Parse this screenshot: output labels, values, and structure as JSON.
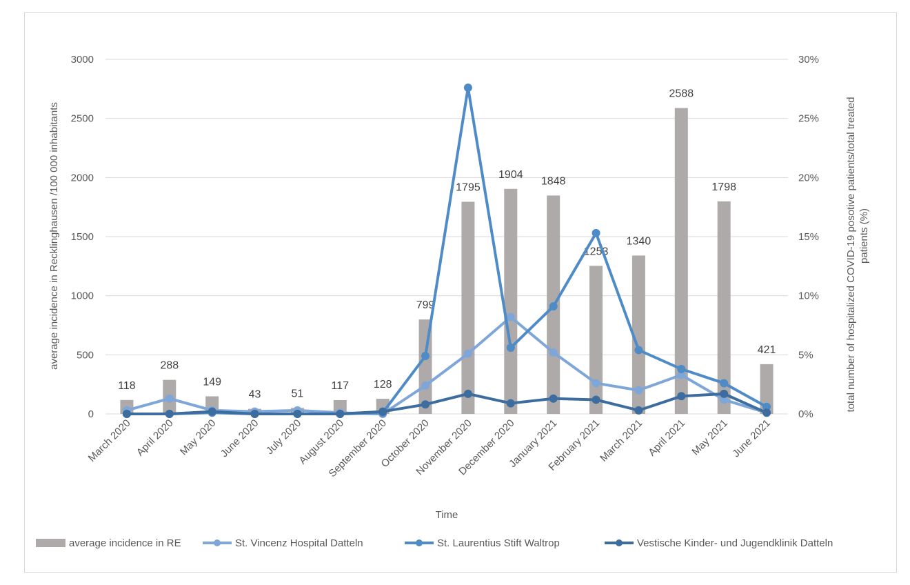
{
  "chart_data": {
    "type": "bar+line",
    "categories": [
      "March 2020",
      "April 2020",
      "May 2020",
      "June 2020",
      "July 2020",
      "August 2020",
      "September 2020",
      "October 2020",
      "November 2020",
      "December 2020",
      "January 2021",
      "February 2021",
      "March 2021",
      "April 2021",
      "May 2021",
      "June 2021"
    ],
    "bar_series": {
      "name": "average incidence in RE",
      "values": [
        118,
        288,
        149,
        43,
        51,
        117,
        128,
        799,
        1795,
        1904,
        1848,
        1253,
        1340,
        2588,
        1798,
        421
      ],
      "color": "#aeaaaa",
      "data_labels": [
        "118",
        "288",
        "149",
        "43",
        "51",
        "117",
        "128",
        "799",
        "1795",
        "1904",
        "1848",
        "1253",
        "1340",
        "2588",
        "1798",
        "421"
      ]
    },
    "line_series": [
      {
        "name": "St. Vincenz Hospital Datteln",
        "color": "#7ea6d8",
        "values": [
          0.3,
          1.3,
          0.3,
          0.2,
          0.3,
          0.1,
          0.0,
          2.4,
          5.1,
          8.2,
          5.2,
          2.6,
          2.0,
          3.3,
          1.2,
          0.1
        ]
      },
      {
        "name": "St. Laurentius Stift Waltrop",
        "color": "#4f8bc6",
        "values": [
          0.0,
          0.0,
          0.1,
          0.0,
          0.0,
          0.0,
          0.1,
          4.9,
          27.6,
          5.6,
          9.1,
          15.3,
          5.4,
          3.8,
          2.6,
          0.6
        ]
      },
      {
        "name": "Vestische Kinder- und Jugendklinik Datteln",
        "color": "#3d6d9e",
        "values": [
          0.0,
          0.0,
          0.2,
          0.0,
          0.0,
          0.0,
          0.2,
          0.8,
          1.7,
          0.9,
          1.3,
          1.2,
          0.3,
          1.5,
          1.7,
          0.1
        ]
      }
    ],
    "y_left": {
      "label": "average incidence in Recklinghausen /100 000 inhabitants",
      "min": 0,
      "max": 3000,
      "ticks": [
        "0",
        "500",
        "1000",
        "1500",
        "2000",
        "2500",
        "3000"
      ]
    },
    "y_right": {
      "label_line1": "total number of hospitalized COVID-19 posotive patients/total treated",
      "label_line2": "patients (%)",
      "min": 0,
      "max": 30,
      "ticks": [
        "0%",
        "5%",
        "10%",
        "15%",
        "20%",
        "25%",
        "30%"
      ]
    },
    "xlabel": "Time",
    "grid": true,
    "legend_position": "bottom"
  }
}
